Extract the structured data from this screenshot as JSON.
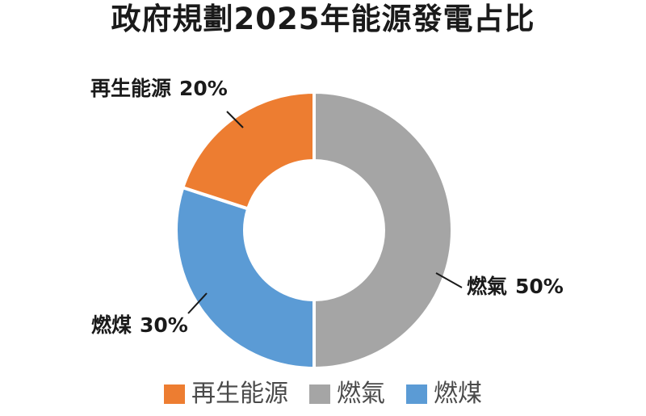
{
  "chart_data": {
    "type": "pie",
    "title": "政府規劃2025年能源發電占比",
    "slices": [
      {
        "name": "燃氣",
        "value": 50,
        "label": "50%",
        "color": "#a5a5a5"
      },
      {
        "name": "燃煤",
        "value": 30,
        "label": "30%",
        "color": "#5b9bd5"
      },
      {
        "name": "再生能源",
        "value": 20,
        "label": "20%",
        "color": "#ed7d31"
      }
    ],
    "legend": {
      "position": "bottom",
      "items": [
        {
          "name": "再生能源",
          "color": "#ed7d31"
        },
        {
          "name": "燃氣",
          "color": "#a5a5a5"
        },
        {
          "name": "燃煤",
          "color": "#5b9bd5"
        }
      ]
    }
  }
}
